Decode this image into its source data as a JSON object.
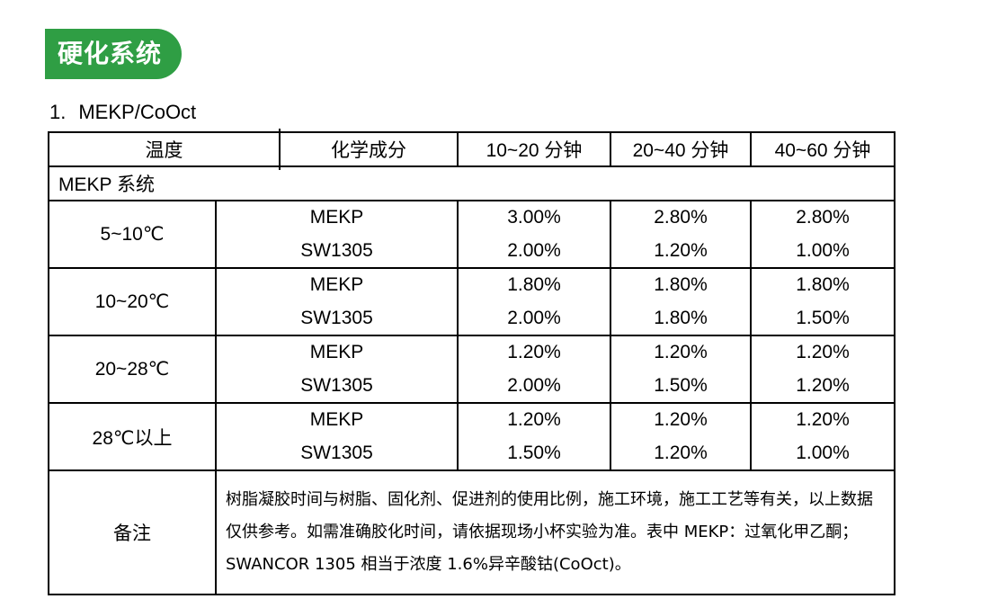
{
  "section_badge": "硬化系统",
  "heading": {
    "number": "1.",
    "text": "MEKP/CoOct"
  },
  "table": {
    "columns": [
      "温度",
      "化学成分",
      "10~20 分钟",
      "20~40  分钟",
      "40~60  分钟"
    ],
    "system_label": "MEKP  系统",
    "groups": [
      {
        "temp": "5~10℃",
        "rows": [
          {
            "component": "MEKP",
            "values": [
              "3.00%",
              "2.80%",
              "2.80%"
            ]
          },
          {
            "component": "SW1305",
            "values": [
              "2.00%",
              "1.20%",
              "1.00%"
            ]
          }
        ]
      },
      {
        "temp": "10~20℃",
        "rows": [
          {
            "component": "MEKP",
            "values": [
              "1.80%",
              "1.80%",
              "1.80%"
            ]
          },
          {
            "component": "SW1305",
            "values": [
              "2.00%",
              "1.80%",
              "1.50%"
            ]
          }
        ]
      },
      {
        "temp": "20~28℃",
        "rows": [
          {
            "component": "MEKP",
            "values": [
              "1.20%",
              "1.20%",
              "1.20%"
            ]
          },
          {
            "component": "SW1305",
            "values": [
              "2.00%",
              "1.50%",
              "1.20%"
            ]
          }
        ]
      },
      {
        "temp": "28℃以上",
        "rows": [
          {
            "component": "MEKP",
            "values": [
              "1.20%",
              "1.20%",
              "1.20%"
            ]
          },
          {
            "component": "SW1305",
            "values": [
              "1.50%",
              "1.20%",
              "1.00%"
            ]
          }
        ]
      }
    ],
    "note_label": "备注",
    "note_text": "树脂凝胶时间与树脂、固化剂、促进剂的使用比例，施工环境，施工工艺等有关，以上数据仅供参考。如需准确胶化时间，请依据现场小杯实验为准。表中 MEKP：过氧化甲乙酮；SWANCOR 1305 相当于浓度 1.6%异辛酸钴(CoOct)。"
  },
  "colors": {
    "badge": "#2f9e44",
    "border": "#000000"
  }
}
